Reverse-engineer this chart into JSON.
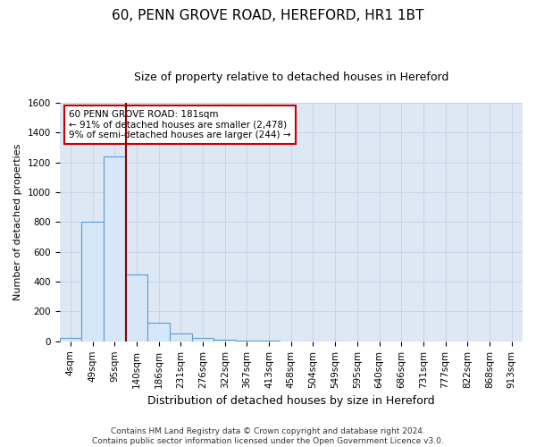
{
  "title_line1": "60, PENN GROVE ROAD, HEREFORD, HR1 1BT",
  "title_line2": "Size of property relative to detached houses in Hereford",
  "xlabel": "Distribution of detached houses by size in Hereford",
  "ylabel": "Number of detached properties",
  "bin_labels": [
    "4sqm",
    "49sqm",
    "95sqm",
    "140sqm",
    "186sqm",
    "231sqm",
    "276sqm",
    "322sqm",
    "367sqm",
    "413sqm",
    "458sqm",
    "504sqm",
    "549sqm",
    "595sqm",
    "640sqm",
    "686sqm",
    "731sqm",
    "777sqm",
    "822sqm",
    "868sqm",
    "913sqm"
  ],
  "bar_values": [
    25,
    800,
    1240,
    450,
    125,
    55,
    20,
    10,
    5,
    2,
    0,
    0,
    0,
    0,
    0,
    0,
    0,
    0,
    0,
    0,
    0
  ],
  "bar_color": "#d6e8f7",
  "bar_edge_color": "#5b9bd5",
  "vline_x_index": 2.5,
  "vline_color": "#8b0000",
  "annotation_text": "60 PENN GROVE ROAD: 181sqm\n← 91% of detached houses are smaller (2,478)\n9% of semi-detached houses are larger (244) →",
  "annotation_box_color": "#cc0000",
  "ylim": [
    0,
    1600
  ],
  "yticks": [
    0,
    200,
    400,
    600,
    800,
    1000,
    1200,
    1400,
    1600
  ],
  "footer_line1": "Contains HM Land Registry data © Crown copyright and database right 2024.",
  "footer_line2": "Contains public sector information licensed under the Open Government Licence v3.0.",
  "grid_color": "#c8d4e8",
  "background_color": "#dde8f4",
  "title_fontsize": 11,
  "subtitle_fontsize": 9,
  "ylabel_fontsize": 8,
  "xlabel_fontsize": 9,
  "tick_fontsize": 7.5,
  "annot_fontsize": 7.5,
  "footer_fontsize": 6.5
}
